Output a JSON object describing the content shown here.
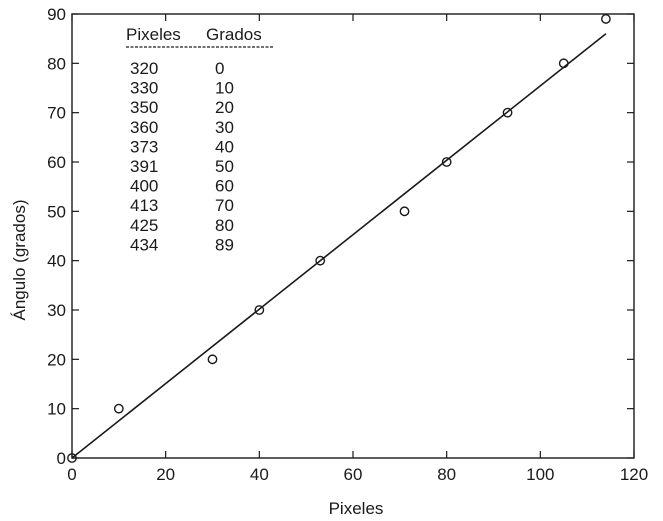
{
  "chart_data": {
    "type": "scatter",
    "title": "",
    "xlabel": "Pixeles",
    "ylabel": "Ángulo (grados)",
    "xlim": [
      0,
      120
    ],
    "ylim": [
      0,
      90
    ],
    "x_ticks": [
      0,
      20,
      40,
      60,
      80,
      100,
      120
    ],
    "y_ticks": [
      0,
      10,
      20,
      30,
      40,
      50,
      60,
      70,
      80,
      90
    ],
    "grid": false,
    "points": [
      {
        "x": 0,
        "y": 0
      },
      {
        "x": 10,
        "y": 10
      },
      {
        "x": 30,
        "y": 20
      },
      {
        "x": 40,
        "y": 30
      },
      {
        "x": 53,
        "y": 40
      },
      {
        "x": 71,
        "y": 50
      },
      {
        "x": 80,
        "y": 60
      },
      {
        "x": 93,
        "y": 70
      },
      {
        "x": 105,
        "y": 80
      },
      {
        "x": 114,
        "y": 89
      }
    ],
    "fit_line": {
      "x": [
        0,
        114
      ],
      "y": [
        0,
        86
      ]
    },
    "table": {
      "headers": [
        "Pixeles",
        "Grados"
      ],
      "rows": [
        [
          "320",
          "0"
        ],
        [
          "330",
          "10"
        ],
        [
          "350",
          "20"
        ],
        [
          "360",
          "30"
        ],
        [
          "373",
          "40"
        ],
        [
          "391",
          "50"
        ],
        [
          "400",
          "60"
        ],
        [
          "413",
          "70"
        ],
        [
          "425",
          "80"
        ],
        [
          "434",
          "89"
        ]
      ]
    }
  }
}
